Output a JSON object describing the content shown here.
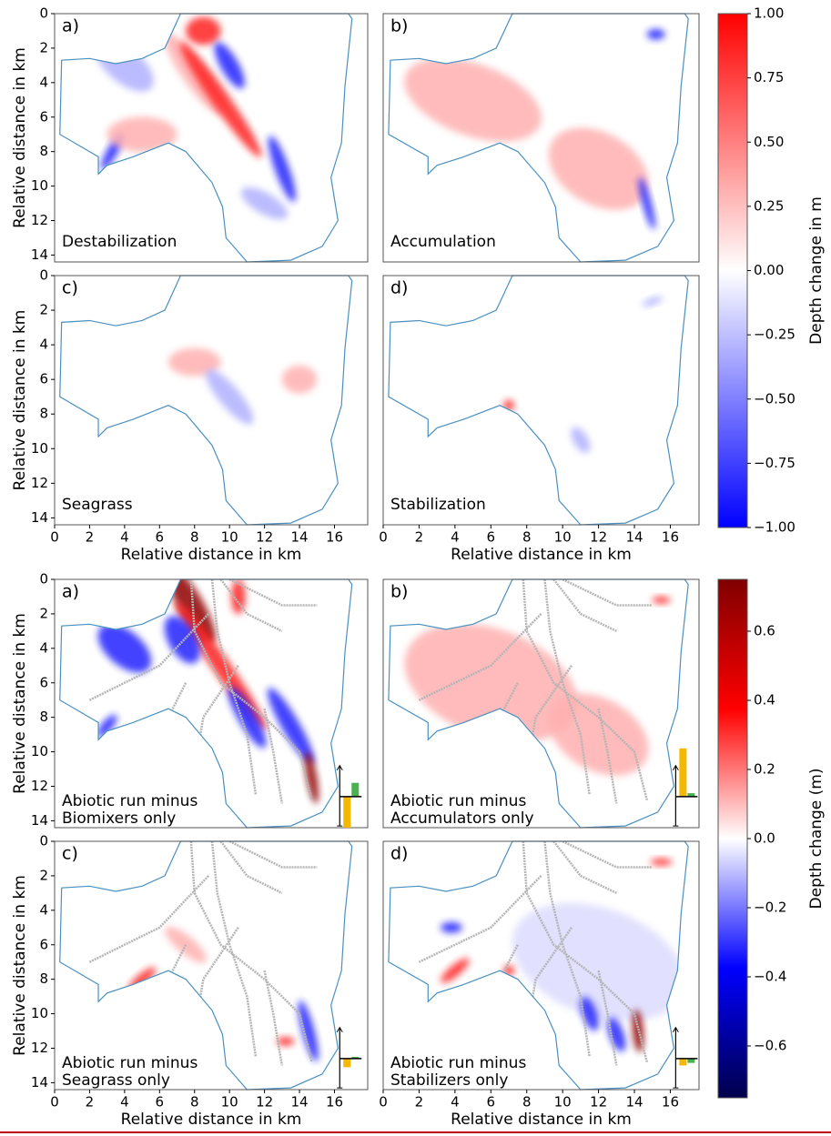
{
  "chart_data": [
    {
      "type": "heatmap",
      "panel": "a)",
      "annotation": [
        "Destabilization"
      ],
      "annotation_color": "#000000",
      "xlim": [
        0,
        17.9
      ],
      "ylim": [
        0,
        14.4
      ],
      "yticks": [
        0,
        2,
        4,
        6,
        8,
        10,
        12,
        14
      ],
      "ylabel": "Relative distance in km"
    },
    {
      "type": "heatmap",
      "panel": "b)",
      "annotation": [
        "Accumulation"
      ],
      "annotation_color": "#000000",
      "xlim": [
        0,
        17.6
      ],
      "ylim": [
        0,
        14.4
      ]
    },
    {
      "type": "heatmap",
      "panel": "c)",
      "annotation": [
        "Seagrass"
      ],
      "annotation_color": "#000000",
      "xlim": [
        0,
        17.9
      ],
      "ylim": [
        0,
        14.4
      ],
      "yticks": [
        0,
        2,
        4,
        6,
        8,
        10,
        12,
        14
      ],
      "xticks": [
        0,
        2,
        4,
        6,
        8,
        10,
        12,
        14,
        16
      ],
      "ylabel": "Relative distance in km",
      "xlabel": "Relative distance in km"
    },
    {
      "type": "heatmap",
      "panel": "d)",
      "annotation": [
        "Stabilization"
      ],
      "annotation_color": "#000000",
      "xlim": [
        0,
        17.6
      ],
      "ylim": [
        0,
        14.4
      ],
      "xticks": [
        0,
        2,
        4,
        6,
        8,
        10,
        12,
        14,
        16
      ],
      "xlabel": "Relative distance in km"
    },
    {
      "type": "colorbar",
      "label": "Depth change in m",
      "ylim": [
        -1,
        1
      ],
      "colors": [
        "#0000ff",
        "#ffffff",
        "#ff0000"
      ],
      "yticks": [
        {
          "value": 1,
          "label": "1.00"
        },
        {
          "value": 0.75,
          "label": "0.75"
        },
        {
          "value": 0.5,
          "label": "0.50"
        },
        {
          "value": 0.25,
          "label": "0.25"
        },
        {
          "value": 0,
          "label": "0.00"
        },
        {
          "value": -0.25,
          "label": "−0.25"
        },
        {
          "value": -0.5,
          "label": "−0.50"
        },
        {
          "value": -0.75,
          "label": "−0.75"
        },
        {
          "value": -1,
          "label": "−1.00"
        }
      ]
    },
    {
      "type": "heatmap",
      "panel": "a)",
      "annotation": [
        "Abiotic run minus",
        "Biomixers only"
      ],
      "annotation_color": "#d62728",
      "xlim": [
        0,
        17.9
      ],
      "ylim": [
        0,
        14.4
      ],
      "yticks": [
        0,
        2,
        4,
        6,
        8,
        10,
        12,
        14
      ],
      "ylabel": "Relative distance in km",
      "inset": {
        "values": [
          -1.8,
          0.8
        ],
        "colors": [
          "#f5b800",
          "#4caf50"
        ]
      }
    },
    {
      "type": "heatmap",
      "panel": "b)",
      "annotation": [
        "Abiotic run minus",
        "Accumulators only"
      ],
      "annotation_color": "#1f77b4",
      "xlim": [
        0,
        17.6
      ],
      "ylim": [
        0,
        14.4
      ],
      "inset": {
        "values": [
          2.8,
          0.2
        ],
        "colors": [
          "#f5b800",
          "#4caf50"
        ]
      }
    },
    {
      "type": "heatmap",
      "panel": "c)",
      "annotation": [
        "Abiotic run minus",
        "Seagrass only"
      ],
      "annotation_color": "#2ca02c",
      "xlim": [
        0,
        17.9
      ],
      "ylim": [
        0,
        14.4
      ],
      "yticks": [
        0,
        2,
        4,
        6,
        8,
        10,
        12,
        14
      ],
      "xticks": [
        0,
        2,
        4,
        6,
        8,
        10,
        12,
        14,
        16
      ],
      "ylabel": "Relative distance in km",
      "xlabel": "Relative distance in km",
      "inset": {
        "values": [
          -0.5,
          0.1
        ],
        "colors": [
          "#f5b800",
          "#4caf50"
        ]
      }
    },
    {
      "type": "heatmap",
      "panel": "d)",
      "annotation": [
        "Abiotic run minus",
        "Stabilizers only"
      ],
      "annotation_color": "#bcbd22",
      "xlim": [
        0,
        17.6
      ],
      "ylim": [
        0,
        14.4
      ],
      "xticks": [
        0,
        2,
        4,
        6,
        8,
        10,
        12,
        14,
        16
      ],
      "xlabel": "Relative distance in km",
      "inset": {
        "values": [
          -0.4,
          -0.25
        ],
        "colors": [
          "#f5b800",
          "#4caf50"
        ]
      }
    },
    {
      "type": "colorbar",
      "label": "Depth change (m)",
      "ylim": [
        -0.75,
        0.75
      ],
      "colors": [
        "#00004c",
        "#0000ff",
        "#ffffff",
        "#ff0000",
        "#800000"
      ],
      "yticks": [
        0.6,
        0.4,
        0.2,
        {
          "value": 0,
          "label": "0.0"
        },
        {
          "value": -0.2,
          "label": "−0.2"
        },
        {
          "value": -0.4,
          "label": "−0.4"
        },
        {
          "value": -0.6,
          "label": "−0.6"
        }
      ]
    }
  ]
}
